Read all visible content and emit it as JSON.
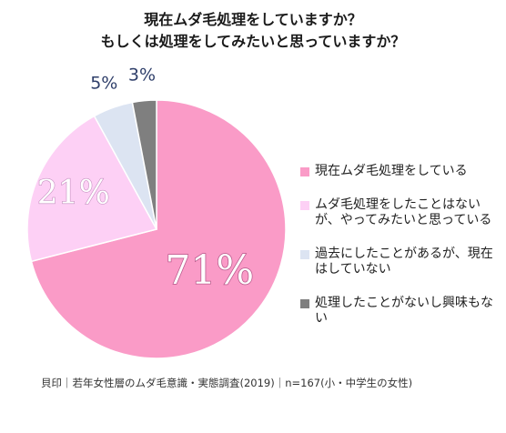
{
  "title_line1": "現在ムダ毛処理をしていますか？",
  "title_line2": "もしくは処理をしてみたいと思っていますか？",
  "chart_data": {
    "type": "pie",
    "slices": [
      {
        "label": "現在ムダ毛処理をしている",
        "value": 71,
        "display": "71%",
        "color": "#fa9bc7"
      },
      {
        "label": "ムダ毛処理をしたことはないが、やってみたいと思っている",
        "value": 21,
        "display": "21%",
        "color": "#fdd0f5"
      },
      {
        "label": "過去にしたことがあるが、現在はしていない",
        "value": 5,
        "display": "5%",
        "color": "#dce4f2"
      },
      {
        "label": "処理したことがないし興味もない",
        "value": 3,
        "display": "3%",
        "color": "#7f7f7f"
      }
    ],
    "legend_position": "right"
  },
  "legend": [
    {
      "text": "現在ムダ毛処理をしている",
      "color": "#fa9bc7"
    },
    {
      "text": "ムダ毛処理をしたことはないが、やってみたいと思っている",
      "color": "#fdd0f5"
    },
    {
      "text": "過去にしたことがあるが、現在はしていない",
      "color": "#dce4f2"
    },
    {
      "text": "処理したことがないし興味もない",
      "color": "#7f7f7f"
    }
  ],
  "source": "貝印｜若年女性層のムダ毛意識・実態調査(2019)｜n=167(小・中学生の女性)"
}
